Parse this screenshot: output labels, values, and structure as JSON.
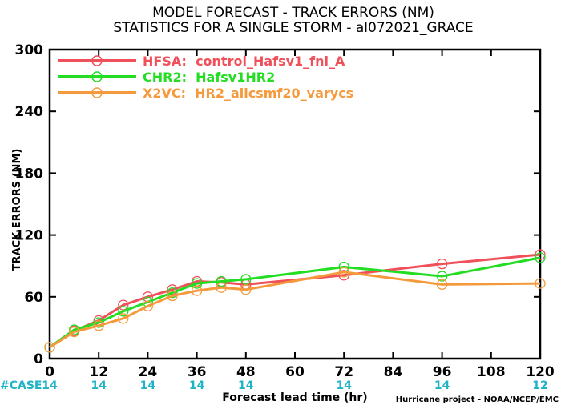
{
  "chart_data": {
    "type": "line",
    "title": "MODEL FORECAST - TRACK ERRORS (NM)",
    "subtitle": "STATISTICS FOR A SINGLE STORM - al072021_GRACE",
    "xlabel": "Forecast lead time (hr)",
    "ylabel": "TRACK ERRORS (NM)",
    "xlim": [
      0,
      120
    ],
    "ylim": [
      0,
      300
    ],
    "x_ticks": [
      "0",
      "12",
      "24",
      "36",
      "48",
      "60",
      "72",
      "84",
      "96",
      "108",
      "120"
    ],
    "y_ticks": [
      "0",
      "60",
      "120",
      "180",
      "240",
      "300"
    ],
    "grid": false,
    "legend_position": "top-left",
    "case_label": "#CASE",
    "case_x": [
      0,
      12,
      24,
      36,
      48,
      72,
      96,
      120
    ],
    "case_counts": [
      "14",
      "14",
      "14",
      "14",
      "14",
      "14",
      "14",
      "12"
    ],
    "credit": "Hurricane project - NOAA/NCEP/EMC",
    "series": [
      {
        "name": "HFSA:  control_Hafsv1_fnl_A",
        "color": "#f0505a",
        "x": [
          0,
          6,
          12,
          18,
          24,
          30,
          36,
          42,
          48,
          72,
          96,
          120
        ],
        "y": [
          11,
          27,
          37,
          52,
          60,
          67,
          75,
          74,
          72,
          81,
          92,
          101
        ]
      },
      {
        "name": "CHR2:  Hafsv1HR2",
        "color": "#22dd22",
        "x": [
          0,
          6,
          12,
          18,
          24,
          30,
          36,
          42,
          48,
          72,
          96,
          120
        ],
        "y": [
          11,
          28,
          35,
          46,
          55,
          64,
          73,
          75,
          77,
          89,
          80,
          98
        ]
      },
      {
        "name": "X2VC:  HR2_allcsmf20_varycs",
        "color": "#f59a3c",
        "x": [
          0,
          6,
          12,
          18,
          24,
          30,
          36,
          42,
          48,
          72,
          96,
          120
        ],
        "y": [
          11,
          26,
          32,
          39,
          51,
          61,
          66,
          69,
          67,
          84,
          72,
          73
        ]
      }
    ]
  }
}
